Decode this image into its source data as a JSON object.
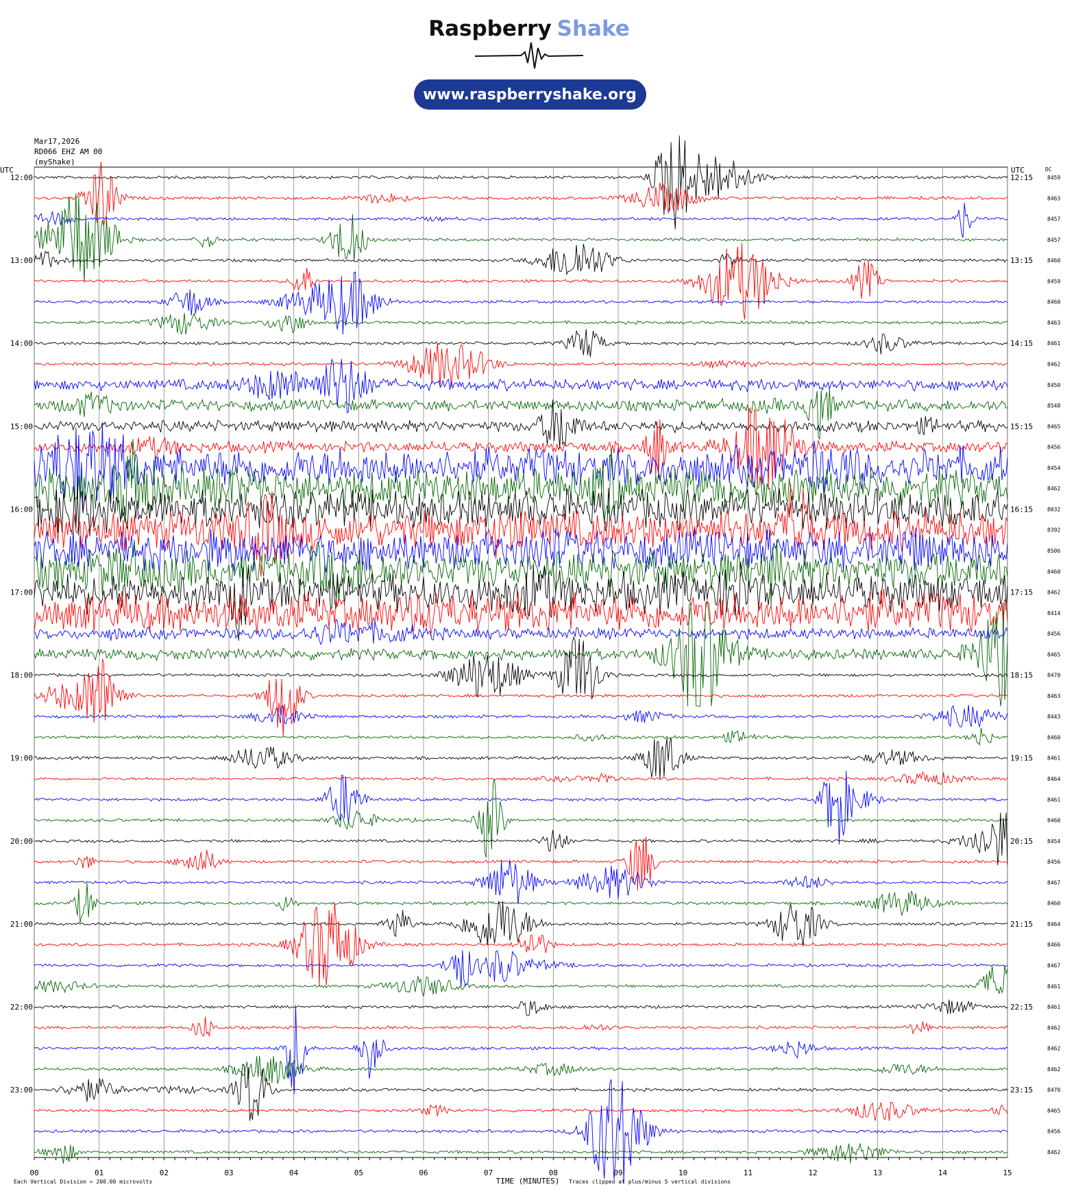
{
  "header": {
    "brand_first": "Raspberry",
    "brand_second": "Shake",
    "url": "www.raspberryshake.org"
  },
  "info": {
    "date": "Mar17,2026",
    "station": "RD066 EHZ AM 00",
    "source": "(myShake)"
  },
  "helicorder": {
    "left_axis_title": "UTC",
    "right_axis_title": "UTC",
    "dc_title": "DC",
    "left_labels": [
      "12:00",
      "13:00",
      "14:00",
      "15:00",
      "16:00",
      "17:00",
      "18:00",
      "19:00",
      "20:00",
      "21:00",
      "22:00",
      "23:00"
    ],
    "right_labels": [
      "12:15",
      "13:15",
      "14:15",
      "15:15",
      "16:15",
      "17:15",
      "18:15",
      "19:15",
      "20:15",
      "21:15",
      "22:15",
      "23:15"
    ],
    "dc_values": [
      8459,
      8463,
      8457,
      8457,
      8460,
      8459,
      8460,
      8463,
      8461,
      8462,
      8450,
      8548,
      8465,
      8456,
      8454,
      8462,
      8032,
      8392,
      8506,
      8460,
      8462,
      8414,
      8456,
      8465,
      8470,
      8463,
      8443,
      8460,
      8461,
      8464,
      8461,
      8460,
      8454,
      8456,
      8467,
      8460,
      8464,
      8466,
      8467,
      8461,
      8461,
      8462,
      8462,
      8462,
      8470,
      8465,
      8456,
      8462
    ],
    "x_ticks": [
      "00",
      "01",
      "02",
      "03",
      "04",
      "05",
      "06",
      "07",
      "08",
      "09",
      "10",
      "11",
      "12",
      "13",
      "14",
      "15"
    ],
    "x_axis_title": "TIME (MINUTES)",
    "scale_note": "Each Vertical Division =  200.00 microvolts",
    "clip_note": "Traces clipped at plus/minus 5 vertical divisions",
    "trace_colors": [
      "#000000",
      "#ff0000",
      "#0000ff",
      "#006400"
    ]
  }
}
